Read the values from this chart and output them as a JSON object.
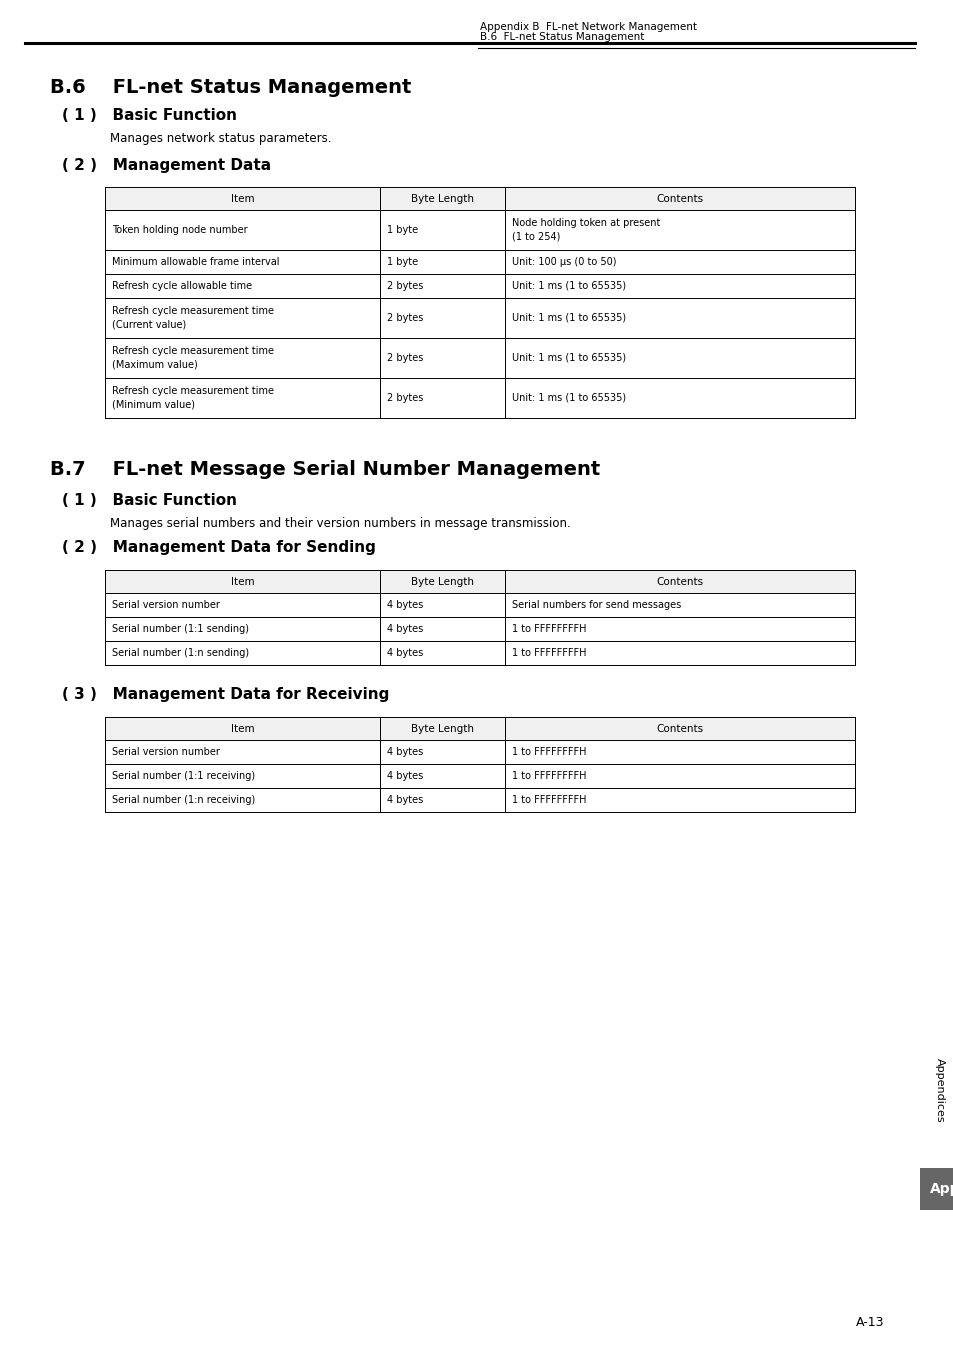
{
  "page_header_left": "Appendix B  FL-net Network Management",
  "page_header_right": "B.6  FL-net Status Management",
  "section_b6_title": "B.6    FL-net Status Management",
  "section_b6_sub1_title": "( 1 )   Basic Function",
  "section_b6_sub1_body": "Manages network status parameters.",
  "section_b6_sub2_title": "( 2 )   Management Data",
  "table1_headers": [
    "Item",
    "Byte Length",
    "Contents"
  ],
  "table1_rows": [
    [
      "Token holding node number",
      "1 byte",
      "Node holding token at present\n(1 to 254)"
    ],
    [
      "Minimum allowable frame interval",
      "1 byte",
      "Unit: 100 μs (0 to 50)"
    ],
    [
      "Refresh cycle allowable time",
      "2 bytes",
      "Unit: 1 ms (1 to 65535)"
    ],
    [
      "Refresh cycle measurement time\n(Current value)",
      "2 bytes",
      "Unit: 1 ms (1 to 65535)"
    ],
    [
      "Refresh cycle measurement time\n(Maximum value)",
      "2 bytes",
      "Unit: 1 ms (1 to 65535)"
    ],
    [
      "Refresh cycle measurement time\n(Minimum value)",
      "2 bytes",
      "Unit: 1 ms (1 to 65535)"
    ]
  ],
  "section_b7_title": "B.7    FL-net Message Serial Number Management",
  "section_b7_sub1_title": "( 1 )   Basic Function",
  "section_b7_sub1_body": "Manages serial numbers and their version numbers in message transmission.",
  "section_b7_sub2_title": "( 2 )   Management Data for Sending",
  "table2_headers": [
    "Item",
    "Byte Length",
    "Contents"
  ],
  "table2_rows": [
    [
      "Serial version number",
      "4 bytes",
      "Serial numbers for send messages"
    ],
    [
      "Serial number (1:1 sending)",
      "4 bytes",
      "1 to FFFFFFFFH"
    ],
    [
      "Serial number (1:n sending)",
      "4 bytes",
      "1 to FFFFFFFFH"
    ]
  ],
  "section_b7_sub3_title": "( 3 )   Management Data for Receiving",
  "table3_headers": [
    "Item",
    "Byte Length",
    "Contents"
  ],
  "table3_rows": [
    [
      "Serial version number",
      "4 bytes",
      "1 to FFFFFFFFH"
    ],
    [
      "Serial number (1:1 receiving)",
      "4 bytes",
      "1 to FFFFFFFFH"
    ],
    [
      "Serial number (1:n receiving)",
      "4 bytes",
      "1 to FFFFFFFFH"
    ]
  ],
  "sidebar_text": "Appendices",
  "sidebar_box_text": "App",
  "page_number": "A-13"
}
